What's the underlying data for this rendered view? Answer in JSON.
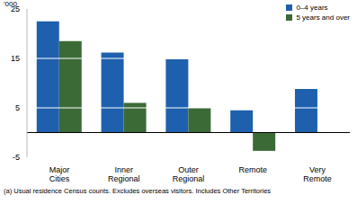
{
  "chart_data": {
    "type": "bar",
    "y_label": "'000",
    "categories": [
      "Major Cities",
      "Inner Regional",
      "Outer Regional",
      "Remote",
      "Very Remote"
    ],
    "series": [
      {
        "name": "0–4 years",
        "color": "#1f60ae",
        "values": [
          22.5,
          16.2,
          14.8,
          4.5,
          8.8
        ]
      },
      {
        "name": "5 years and over",
        "color": "#3b6a37",
        "values": [
          18.5,
          6,
          5,
          -3.7,
          0
        ]
      }
    ],
    "ylim": [
      -5,
      25
    ],
    "yticks": [
      -5,
      5,
      15,
      25
    ],
    "grid": true,
    "legend": "top-right",
    "annotations": [
      "(a) Usual residence Census counts. Excludes overseas visitors. Includes Other Territories"
    ]
  }
}
